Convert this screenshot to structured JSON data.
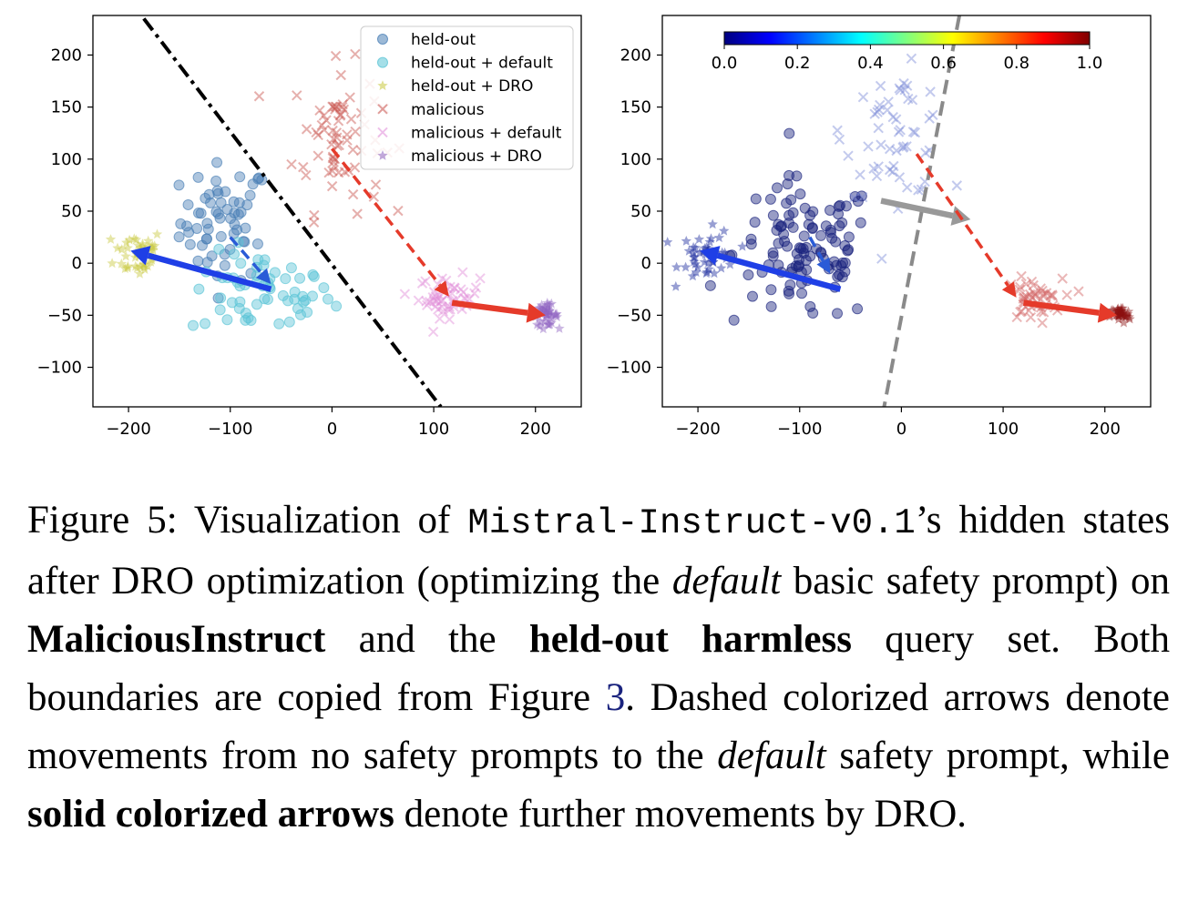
{
  "chart_data": [
    {
      "type": "scatter",
      "panel": "left",
      "xlim": [
        -235,
        245
      ],
      "ylim": [
        -138,
        238
      ],
      "xticks": [
        -200,
        -100,
        0,
        100,
        200
      ],
      "yticks": [
        200,
        150,
        100,
        50,
        0,
        -50,
        -100
      ],
      "xtick_labels": [
        "−200",
        "−100",
        "0",
        "100",
        "200"
      ],
      "ytick_labels": [
        "200",
        "150",
        "100",
        "50",
        "0",
        "−50",
        "−100"
      ],
      "legend_position": "top-right",
      "series": [
        {
          "name": "held-out",
          "marker": "circle",
          "color": "#4a7fb5",
          "cx": -105,
          "cy": 40,
          "sx": 22,
          "sy": 28,
          "n": 60
        },
        {
          "name": "held-out + default",
          "marker": "circle",
          "color": "#5bc4d6",
          "cx": -70,
          "cy": -30,
          "sx": 35,
          "sy": 20,
          "n": 60
        },
        {
          "name": "held-out + DRO",
          "marker": "star",
          "color": "#c8c83c",
          "cx": -190,
          "cy": 10,
          "sx": 12,
          "sy": 12,
          "n": 45
        },
        {
          "name": "malicious",
          "marker": "x",
          "color": "#c8504a",
          "cx": 5,
          "cy": 120,
          "sx": 22,
          "sy": 35,
          "n": 70
        },
        {
          "name": "malicious + default",
          "marker": "x",
          "color": "#e08ad8",
          "cx": 115,
          "cy": -32,
          "sx": 15,
          "sy": 10,
          "n": 50
        },
        {
          "name": "malicious + DRO",
          "marker": "star",
          "color": "#8e62c0",
          "cx": 210,
          "cy": -50,
          "sx": 6,
          "sy": 5,
          "n": 40
        }
      ],
      "boundary": {
        "from": [
          -185,
          235
        ],
        "to": [
          107,
          -138
        ],
        "style": "dashdot",
        "color": "#000000"
      },
      "arrows": [
        {
          "from": [
            -100,
            25
          ],
          "to": [
            -60,
            -20
          ],
          "style": "dashed",
          "color": "#2a5bd7"
        },
        {
          "from": [
            -60,
            -25
          ],
          "to": [
            -198,
            12
          ],
          "style": "solid",
          "color": "#1f3fe6"
        },
        {
          "from": [
            0,
            110
          ],
          "to": [
            115,
            -32
          ],
          "style": "dashed",
          "color": "#e53a2a"
        },
        {
          "from": [
            118,
            -38
          ],
          "to": [
            210,
            -50
          ],
          "style": "solid",
          "color": "#e53a2a"
        }
      ]
    },
    {
      "type": "scatter",
      "panel": "right",
      "xlim": [
        -235,
        245
      ],
      "ylim": [
        -138,
        238
      ],
      "xticks": [
        -200,
        -100,
        0,
        100,
        200
      ],
      "yticks": [
        200,
        150,
        100,
        50,
        0,
        -50,
        -100
      ],
      "xtick_labels": [
        "−200",
        "−100",
        "0",
        "100",
        "200"
      ],
      "ytick_labels": [
        "200",
        "150",
        "100",
        "50",
        "0",
        "−50",
        "−100"
      ],
      "colorbar": {
        "colormap": "jet",
        "min": 0.0,
        "max": 1.0,
        "ticks": [
          "0.0",
          "0.2",
          "0.4",
          "0.6",
          "0.8",
          "1.0"
        ],
        "position": "top"
      },
      "series": [
        {
          "marker": "circle",
          "color": "#1a237e",
          "cx": -95,
          "cy": 10,
          "sx": 35,
          "sy": 35,
          "n": 110
        },
        {
          "marker": "star",
          "color": "#1a2a9e",
          "cx": -190,
          "cy": 8,
          "sx": 14,
          "sy": 12,
          "n": 45
        },
        {
          "marker": "x",
          "color": "#7a8ad8",
          "cx": -5,
          "cy": 125,
          "sx": 25,
          "sy": 30,
          "n": 55
        },
        {
          "marker": "x",
          "color": "#d06060",
          "cx": 130,
          "cy": -35,
          "sx": 14,
          "sy": 10,
          "n": 45
        },
        {
          "marker": "star",
          "color": "#8b1010",
          "cx": 215,
          "cy": -50,
          "sx": 5,
          "sy": 4,
          "n": 35
        }
      ],
      "boundary": {
        "from": [
          57,
          238
        ],
        "to": [
          -17,
          -138
        ],
        "style": "dashed",
        "color": "#8a8a8a"
      },
      "arrows": [
        {
          "from": [
            -90,
            25
          ],
          "to": [
            -70,
            -10
          ],
          "style": "dashed",
          "color": "#2a5bd7"
        },
        {
          "from": [
            -60,
            -25
          ],
          "to": [
            -198,
            12
          ],
          "style": "solid",
          "color": "#1f3fe6"
        },
        {
          "from": [
            -20,
            60
          ],
          "to": [
            68,
            42
          ],
          "style": "solid",
          "color": "#999999"
        },
        {
          "from": [
            15,
            105
          ],
          "to": [
            113,
            -33
          ],
          "style": "dashed",
          "color": "#e53a2a"
        },
        {
          "from": [
            120,
            -38
          ],
          "to": [
            212,
            -50
          ],
          "style": "solid",
          "color": "#e53a2a"
        }
      ]
    }
  ],
  "caption": {
    "part1": "Figure 5: Visualization of ",
    "model_name": "Mistral-Instruct-v0.1",
    "part2": "’s hidden states after DRO optimization (optimizing the ",
    "default_1": "default",
    "part3": " basic safety prompt) on ",
    "dataset": "MaliciousInstruct",
    "part4": " and the ",
    "held_out": "held-out harmless",
    "part5": " query set. Both boundaries are copied from Figure ",
    "figure_ref": "3",
    "part6": ". Dashed colorized arrows denote movements from no safety prompts to the ",
    "default_2": "default",
    "part7": " safety prompt, while ",
    "solid_arrows": "solid colorized arrows",
    "part8": " denote further movements by DRO."
  }
}
